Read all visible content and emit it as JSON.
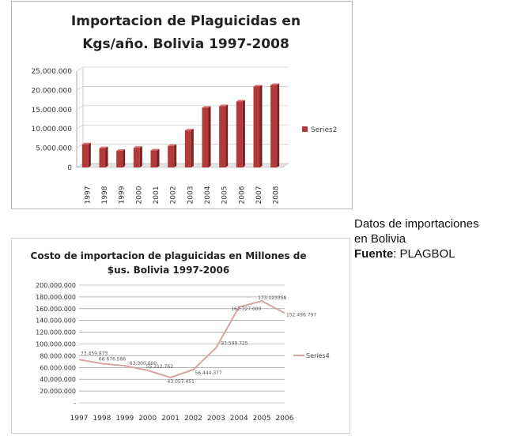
{
  "note": {
    "line1": "Datos de importaciones",
    "line2": "en Bolivia",
    "source_label": "Fuente",
    "source_sep": ": ",
    "source_value": "PLAGBOL"
  },
  "chart_data": [
    {
      "type": "bar",
      "title_line1": "Importacion de Plaguicidas  en",
      "title_line2": "Kgs/año. Bolivia 1997-2008",
      "categories": [
        "1997",
        "1998",
        "1999",
        "2000",
        "2001",
        "2002",
        "2003",
        "2004",
        "2005",
        "2006",
        "2007",
        "2008"
      ],
      "series": [
        {
          "name": "Series2",
          "values": [
            6000000,
            5000000,
            4300000,
            5100000,
            4400000,
            5600000,
            9600000,
            15500000,
            15900000,
            17100000,
            21000000,
            21400000
          ]
        }
      ],
      "ylim": [
        0,
        25000000
      ],
      "yticks": [
        0,
        5000000,
        10000000,
        15000000,
        20000000,
        25000000
      ],
      "ytick_labels": [
        "0",
        "5.000.000",
        "10.000.000",
        "15.000.000",
        "20.000.000",
        "25.000.000"
      ],
      "grid": true,
      "legend": "right",
      "colors": {
        "bar": "#b23a3a",
        "bar_top": "#d47070",
        "floor": "#e3e3e3"
      }
    },
    {
      "type": "line",
      "title_line1": "Costo de importacion de plaguicidas en Millones de",
      "title_line2": "$us. Bolivia 1997-2006",
      "categories": [
        "1997",
        "1998",
        "1999",
        "2000",
        "2001",
        "2002",
        "2003",
        "2004",
        "2005",
        "2006"
      ],
      "series": [
        {
          "name": "Series4",
          "values": [
            73459873,
            66676586,
            63000000,
            55212762,
            43057451,
            56444377,
            93599725,
            162727000,
            173123358,
            152496797
          ]
        }
      ],
      "data_labels": [
        "73.459.873",
        "66.676.586",
        "63.000.000",
        "55.212.762",
        "43.057.451",
        "56.444.377",
        "93.599.725",
        "162.727.000",
        "173.123358",
        "152.496.797"
      ],
      "ylim": [
        0,
        200000000
      ],
      "yticks": [
        0,
        20000000,
        40000000,
        60000000,
        80000000,
        100000000,
        120000000,
        140000000,
        160000000,
        180000000,
        200000000
      ],
      "ytick_labels": [
        "-",
        "20.000.000",
        "40.000.000",
        "60.000.000",
        "80.000.000",
        "100.000.000",
        "120.000.000",
        "140.000.000",
        "160.000.000",
        "180.000.000",
        "200.000.000"
      ],
      "grid": true,
      "legend": "right",
      "colors": {
        "line": "#d9a3a3"
      }
    }
  ]
}
